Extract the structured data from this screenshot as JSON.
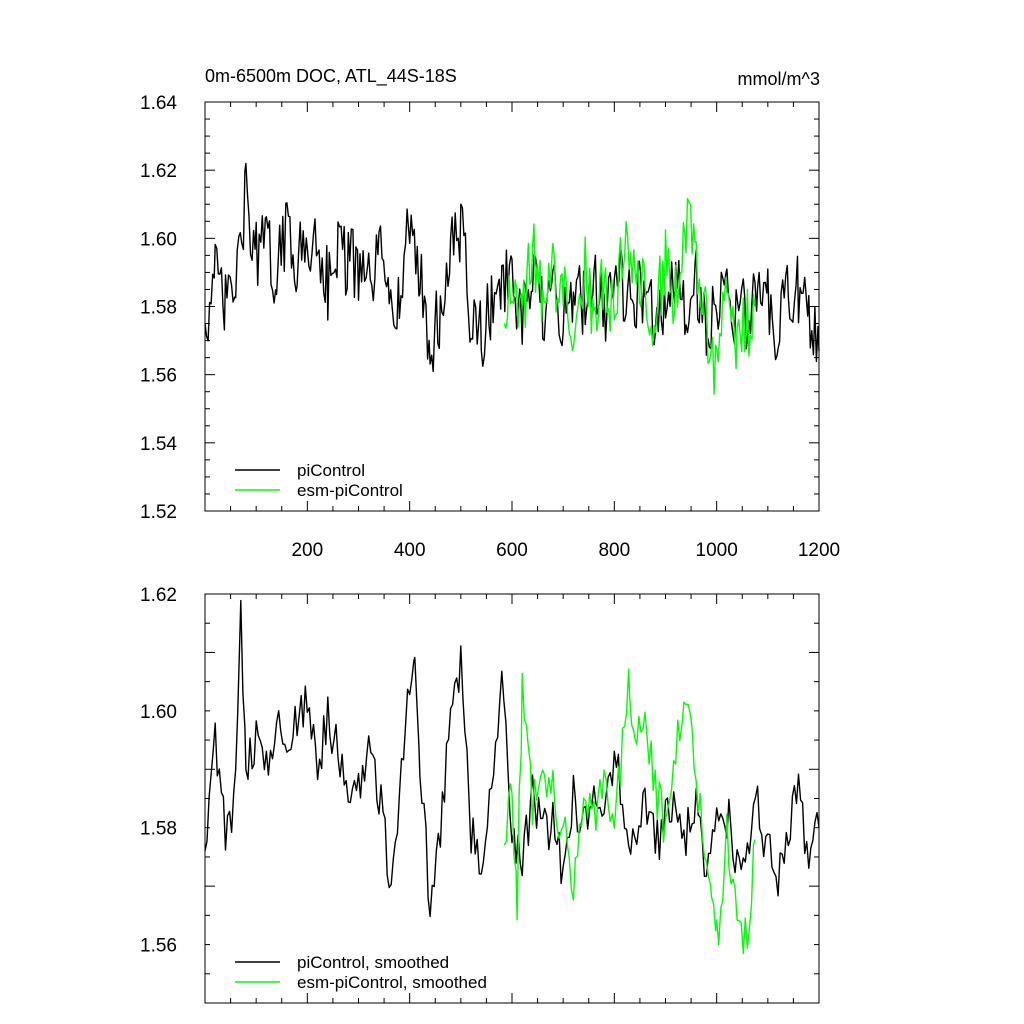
{
  "chart_data": [
    {
      "type": "line",
      "title": "0m-6500m DOC, ATL_44S-18S",
      "units": "mmol/m^3",
      "xlabel": "",
      "ylabel": "",
      "xlim": [
        0,
        1200
      ],
      "ylim": [
        1.52,
        1.64
      ],
      "x_ticks": [
        "200",
        "400",
        "600",
        "800",
        "1000",
        "1200"
      ],
      "y_ticks": [
        "1.52",
        "1.54",
        "1.56",
        "1.58",
        "1.60",
        "1.62",
        "1.64"
      ],
      "legend_position": "bottom-left",
      "series": [
        {
          "name": "piControl",
          "color": "#000000",
          "x": [
            0,
            20,
            40,
            60,
            80,
            100,
            120,
            140,
            160,
            180,
            200,
            220,
            240,
            260,
            280,
            300,
            320,
            340,
            360,
            380,
            400,
            420,
            440,
            460,
            480,
            500,
            520,
            540,
            560,
            580,
            600,
            620,
            640,
            660,
            680,
            700,
            720,
            740,
            760,
            780,
            800,
            820,
            840,
            860,
            880,
            900,
            920,
            940,
            960,
            980,
            1000,
            1020,
            1040,
            1060,
            1080,
            1100,
            1120,
            1140,
            1160,
            1180,
            1200
          ],
          "values": [
            1.575,
            1.588,
            1.58,
            1.586,
            1.612,
            1.595,
            1.598,
            1.589,
            1.603,
            1.594,
            1.596,
            1.601,
            1.587,
            1.598,
            1.593,
            1.59,
            1.586,
            1.594,
            1.588,
            1.58,
            1.605,
            1.59,
            1.566,
            1.579,
            1.595,
            1.604,
            1.575,
            1.572,
            1.579,
            1.59,
            1.584,
            1.575,
            1.588,
            1.578,
            1.583,
            1.576,
            1.586,
            1.582,
            1.59,
            1.578,
            1.592,
            1.585,
            1.58,
            1.586,
            1.577,
            1.583,
            1.584,
            1.58,
            1.588,
            1.575,
            1.582,
            1.584,
            1.576,
            1.578,
            1.585,
            1.58,
            1.572,
            1.583,
            1.586,
            1.574,
            1.567
          ]
        },
        {
          "name": "esm-piControl",
          "color": "#00ff00",
          "x": [
            585,
            600,
            620,
            640,
            660,
            680,
            700,
            720,
            740,
            760,
            780,
            800,
            820,
            840,
            860,
            880,
            900,
            920,
            940,
            960,
            980,
            1000,
            1020,
            1040,
            1060,
            1075
          ],
          "values": [
            1.575,
            1.592,
            1.578,
            1.597,
            1.58,
            1.589,
            1.585,
            1.576,
            1.592,
            1.58,
            1.586,
            1.575,
            1.604,
            1.59,
            1.584,
            1.577,
            1.595,
            1.582,
            1.606,
            1.591,
            1.575,
            1.562,
            1.585,
            1.57,
            1.574,
            1.58
          ]
        }
      ]
    },
    {
      "type": "line",
      "title": "",
      "xlabel": "",
      "ylabel": "",
      "xlim": [
        0,
        1200
      ],
      "ylim": [
        1.55,
        1.62
      ],
      "y_ticks": [
        "1.56",
        "1.58",
        "1.60",
        "1.62"
      ],
      "legend_position": "bottom-left",
      "series": [
        {
          "name": "piControl, smoothed",
          "color": "#000000",
          "x": [
            0,
            20,
            40,
            60,
            70,
            80,
            100,
            120,
            140,
            160,
            180,
            200,
            220,
            240,
            260,
            280,
            300,
            320,
            340,
            360,
            380,
            400,
            410,
            420,
            440,
            460,
            480,
            500,
            520,
            540,
            560,
            580,
            600,
            620,
            640,
            660,
            680,
            700,
            720,
            740,
            760,
            780,
            800,
            820,
            840,
            860,
            880,
            900,
            920,
            940,
            960,
            980,
            1000,
            1020,
            1040,
            1060,
            1080,
            1100,
            1120,
            1140,
            1160,
            1180,
            1200
          ],
          "values": [
            1.576,
            1.596,
            1.58,
            1.586,
            1.617,
            1.59,
            1.596,
            1.592,
            1.597,
            1.595,
            1.599,
            1.603,
            1.59,
            1.598,
            1.593,
            1.586,
            1.588,
            1.594,
            1.586,
            1.572,
            1.584,
            1.605,
            1.612,
            1.59,
            1.568,
            1.578,
            1.602,
            1.609,
            1.578,
            1.575,
            1.586,
            1.605,
            1.578,
            1.574,
            1.586,
            1.578,
            1.582,
            1.572,
            1.586,
            1.579,
            1.59,
            1.58,
            1.592,
            1.583,
            1.575,
            1.586,
            1.576,
            1.582,
            1.586,
            1.578,
            1.584,
            1.574,
            1.58,
            1.582,
            1.574,
            1.578,
            1.583,
            1.576,
            1.57,
            1.581,
            1.586,
            1.576,
            1.58
          ]
        },
        {
          "name": "esm-piControl, smoothed",
          "color": "#00ff00",
          "x": [
            585,
            600,
            610,
            620,
            640,
            660,
            680,
            700,
            720,
            740,
            760,
            780,
            800,
            820,
            830,
            840,
            860,
            880,
            900,
            920,
            940,
            960,
            980,
            990,
            1000,
            1020,
            1040,
            1060,
            1075
          ],
          "values": [
            1.577,
            1.587,
            1.568,
            1.603,
            1.585,
            1.592,
            1.586,
            1.58,
            1.568,
            1.588,
            1.582,
            1.59,
            1.578,
            1.598,
            1.606,
            1.592,
            1.6,
            1.587,
            1.58,
            1.594,
            1.604,
            1.59,
            1.576,
            1.566,
            1.56,
            1.578,
            1.565,
            1.56,
            1.578
          ]
        }
      ]
    }
  ]
}
